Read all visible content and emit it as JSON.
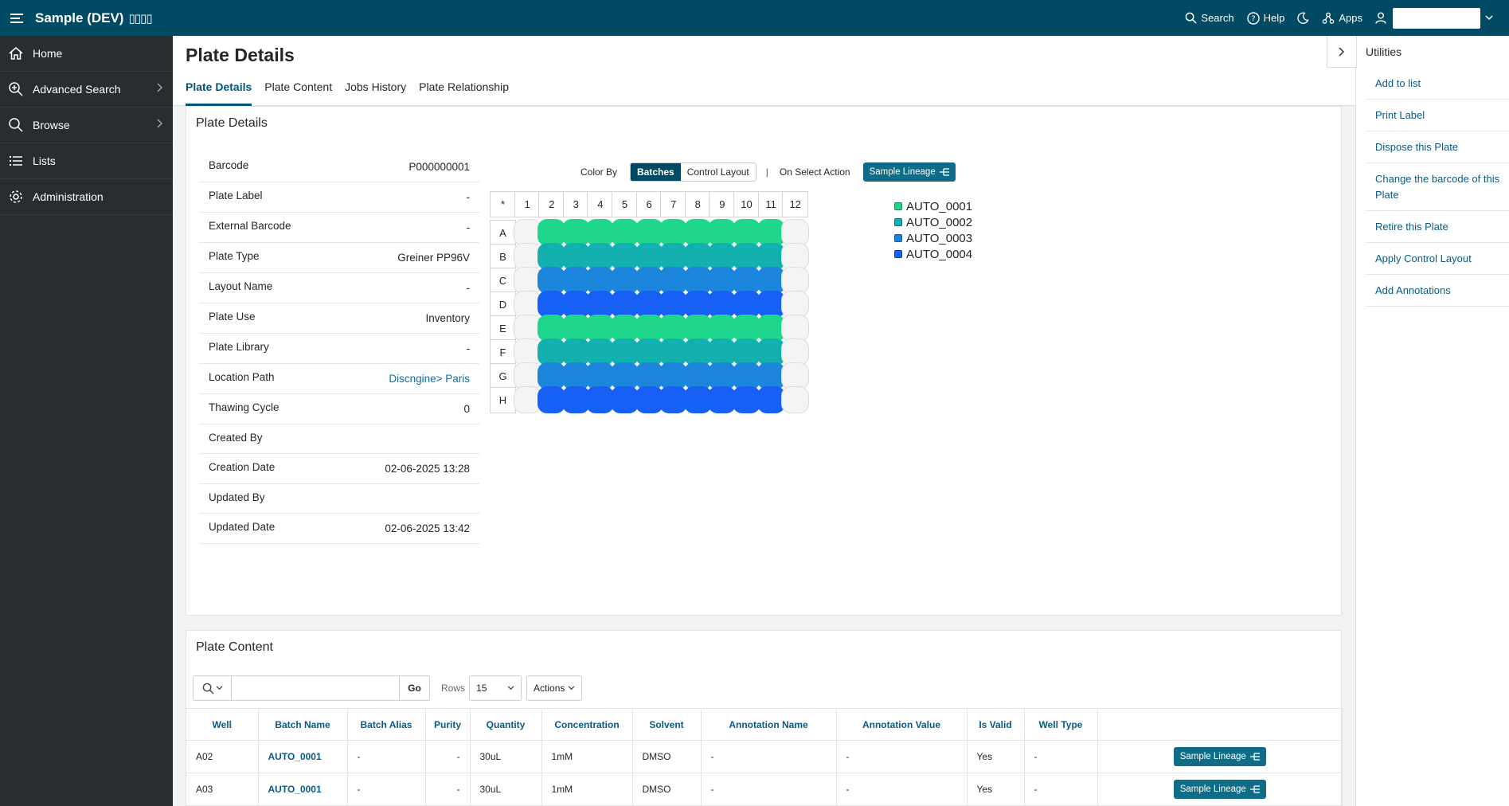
{
  "header": {
    "app_title": "Sample (DEV)",
    "app_title_suffix": "▯▯▯▯",
    "search_label": "Search",
    "help_label": "Help",
    "apps_label": "Apps"
  },
  "sidebar": {
    "items": [
      {
        "label": "Home",
        "icon": "home-icon"
      },
      {
        "label": "Advanced Search",
        "icon": "zoom-plus-icon",
        "has_children": true
      },
      {
        "label": "Browse",
        "icon": "search-icon",
        "has_children": true
      },
      {
        "label": "Lists",
        "icon": "list-icon"
      },
      {
        "label": "Administration",
        "icon": "gear-icon"
      }
    ]
  },
  "page": {
    "title": "Plate Details",
    "tabs": [
      "Plate Details",
      "Plate Content",
      "Jobs History",
      "Plate Relationship"
    ]
  },
  "details_region": {
    "title": "Plate Details",
    "rows": [
      {
        "label": "Barcode",
        "value": "P000000001"
      },
      {
        "label": "Plate Label",
        "value": "-"
      },
      {
        "label": "External Barcode",
        "value": "-"
      },
      {
        "label": "Plate Type",
        "value": "Greiner PP96V"
      },
      {
        "label": "Layout Name",
        "value": "-"
      },
      {
        "label": "Plate Use",
        "value": "Inventory"
      },
      {
        "label": "Plate Library",
        "value": "-"
      },
      {
        "label": "Location Path",
        "value": "Discngine> Paris",
        "link": true
      },
      {
        "label": "Thawing Cycle",
        "value": "0"
      },
      {
        "label": "Created By",
        "value": ""
      },
      {
        "label": "Creation Date",
        "value": "02-06-2025 13:28"
      },
      {
        "label": "Updated By",
        "value": ""
      },
      {
        "label": "Updated Date",
        "value": "02-06-2025 13:42"
      }
    ]
  },
  "plate_controls": {
    "color_by_label": "Color By",
    "batches_label": "Batches",
    "control_layout_label": "Control Layout",
    "separator": "|",
    "on_select_label": "On Select Action",
    "lineage_button": "Sample Lineage"
  },
  "plate": {
    "corner": "*",
    "columns": [
      "1",
      "2",
      "3",
      "4",
      "5",
      "6",
      "7",
      "8",
      "9",
      "10",
      "11",
      "12"
    ],
    "rows": [
      "A",
      "B",
      "C",
      "D",
      "E",
      "F",
      "G",
      "H"
    ],
    "row_batch": [
      0,
      1,
      2,
      3,
      0,
      1,
      2,
      3
    ],
    "filled_columns": [
      2,
      3,
      4,
      5,
      6,
      7,
      8,
      9,
      10,
      11
    ],
    "batch_colors": [
      "#1ed68c",
      "#12b0ae",
      "#1c86dc",
      "#1760f6"
    ],
    "empty_color": "#f4f4f4",
    "legend": [
      "AUTO_0001",
      "AUTO_0002",
      "AUTO_0003",
      "AUTO_0004"
    ]
  },
  "content_region": {
    "title": "Plate Content",
    "go_label": "Go",
    "rows_label": "Rows",
    "rows_value": "15",
    "actions_label": "Actions",
    "search_value": "",
    "columns": [
      "Well",
      "Batch Name",
      "Batch Alias",
      "Purity",
      "Quantity",
      "Concentration",
      "Solvent",
      "Annotation Name",
      "Annotation Value",
      "Is Valid",
      "Well Type",
      ""
    ],
    "rows": [
      {
        "well": "A02",
        "batch": "AUTO_0001",
        "alias": "-",
        "purity": "-",
        "quantity": "30uL",
        "conc": "1mM",
        "solvent": "DMSO",
        "ann_name": "-",
        "ann_value": "-",
        "valid": "Yes",
        "well_type": "-",
        "action": "Sample Lineage"
      },
      {
        "well": "A03",
        "batch": "AUTO_0001",
        "alias": "-",
        "purity": "-",
        "quantity": "30uL",
        "conc": "1mM",
        "solvent": "DMSO",
        "ann_name": "-",
        "ann_value": "-",
        "valid": "Yes",
        "well_type": "-",
        "action": "Sample Lineage"
      }
    ]
  },
  "utilities": {
    "title": "Utilities",
    "items": [
      "Add to list",
      "Print Label",
      "Dispose this Plate",
      "Change the barcode of this Plate",
      "Retire this Plate",
      "Apply Control Layout",
      "Add Annotations"
    ]
  }
}
